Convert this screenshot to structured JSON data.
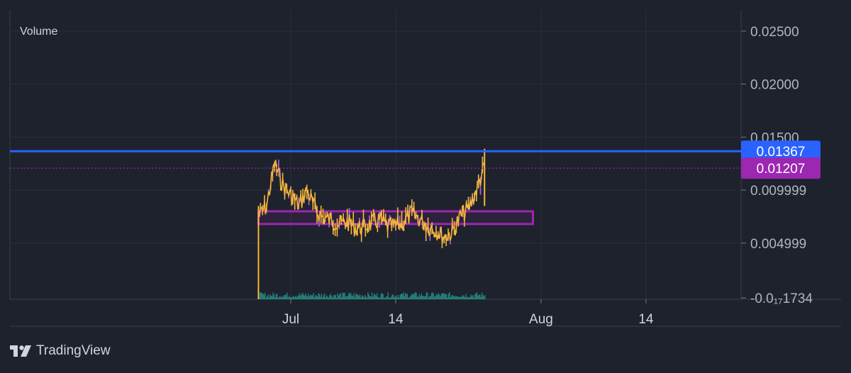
{
  "panel": {
    "label": "Volume"
  },
  "brand": {
    "name": "TradingView",
    "icon": "tradingview-logo-icon"
  },
  "colors": {
    "background": "#1e222d",
    "candle_line": "#f5b53f",
    "candle_accent": "#b065e0",
    "resistance_line": "#2962ff",
    "current_price": "#9c27b0",
    "zone_border": "#9c27b0",
    "volume": "#26a69a"
  },
  "chart_data": {
    "type": "line",
    "series": [
      {
        "x": [
          "2024-06-27",
          "2024-06-28",
          "2024-06-29",
          "2024-06-30",
          "2024-07-01",
          "2024-07-02",
          "2024-07-03",
          "2024-07-04",
          "2024-07-05",
          "2024-07-06",
          "2024-07-07",
          "2024-07-08",
          "2024-07-09",
          "2024-07-10",
          "2024-07-11",
          "2024-07-12",
          "2024-07-13",
          "2024-07-14",
          "2024-07-15",
          "2024-07-16",
          "2024-07-17",
          "2024-07-18",
          "2024-07-19",
          "2024-07-20",
          "2024-07-21",
          "2024-07-22",
          "2024-07-23",
          "2024-07-24",
          "2024-07-25"
        ],
        "values": [
          0.0075,
          0.0085,
          0.0125,
          0.0105,
          0.0095,
          0.0085,
          0.01,
          0.0082,
          0.0074,
          0.0072,
          0.0068,
          0.007,
          0.0064,
          0.0065,
          0.0068,
          0.0072,
          0.0066,
          0.0066,
          0.007,
          0.0078,
          0.0072,
          0.0066,
          0.0062,
          0.0056,
          0.006,
          0.0075,
          0.0082,
          0.01,
          0.0122
        ]
      }
    ],
    "x_ticks": [
      "Jul",
      "14",
      "Aug",
      "14"
    ],
    "y_ticks": [
      "0.02500",
      "0.02000",
      "0.01500",
      "0.009999",
      "0.004999",
      "-0.0₁₇1734"
    ],
    "ylim": [
      -0.0003,
      0.027
    ],
    "resistance_level": {
      "value": 0.01367,
      "label": "0.01367"
    },
    "current_price": {
      "value": 0.01207,
      "label": "0.01207"
    },
    "zone": {
      "x_start": "2024-06-27",
      "x_end": "2024-07-31",
      "y_low": 0.0068,
      "y_high": 0.008
    },
    "volume_spike_date": "2024-06-27",
    "grid": true
  }
}
